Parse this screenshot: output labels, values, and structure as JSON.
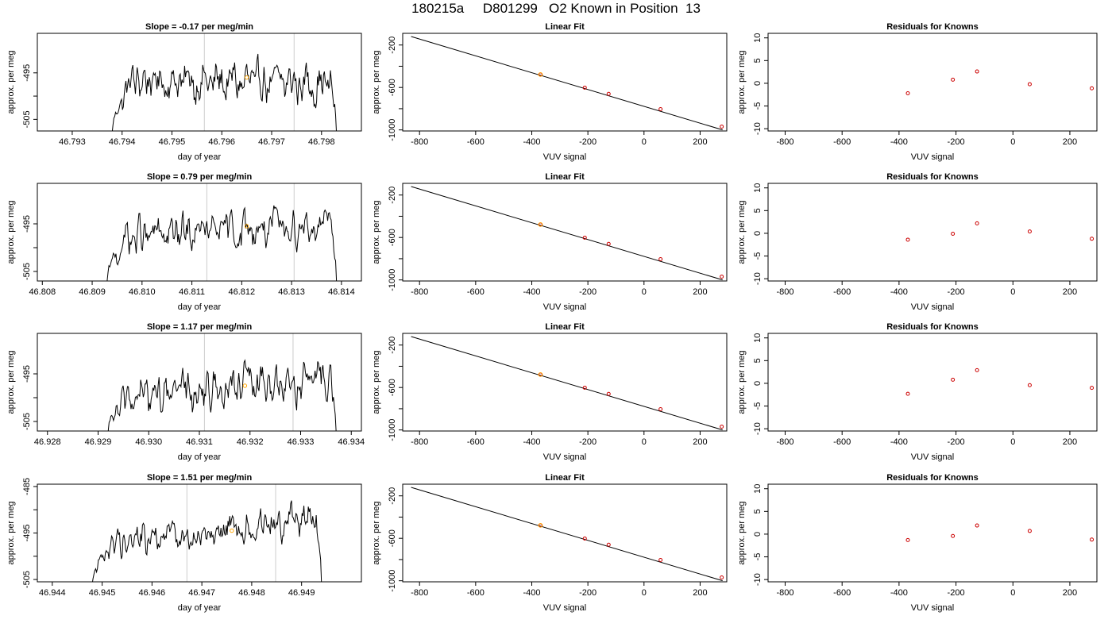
{
  "main_title": "180215a     D801299   O2 Known in Position  13",
  "colors": {
    "trace": "#000000",
    "vline": "#cccccc",
    "highlight": "#ffa500",
    "residual": "#cc0000",
    "fit": "#000000"
  },
  "chart_data": [
    {
      "type": "line",
      "title": "Slope =  -0.17  per meg/min",
      "xlabel": "day of year",
      "ylabel": "approx. per meg",
      "xlim": [
        46.7923,
        46.7988
      ],
      "ylim": [
        -507.5,
        -486.5
      ],
      "xticks": [
        "46.793",
        "46.794",
        "46.795",
        "46.796",
        "46.797",
        "46.798"
      ],
      "yticks": [
        "-495",
        "-505"
      ],
      "trace_start": 46.7938,
      "trace_end": 46.7983,
      "trace_min": -508,
      "trace_mid": -497,
      "trace_drift": -0.17,
      "noise": 2.4,
      "vlines": [
        46.79565,
        46.79745
      ],
      "highlight": {
        "x": 46.7965,
        "y": -496
      }
    },
    {
      "type": "scatter",
      "title": "Linear Fit",
      "xlabel": "VUV signal",
      "ylabel": "approx. per meg",
      "xlim": [
        -860,
        295
      ],
      "ylim": [
        -1010,
        -90
      ],
      "xticks": [
        "-800",
        "-600",
        "-400",
        "-200",
        "0",
        "200"
      ],
      "yticks": [
        "-200",
        "-600",
        "-1000"
      ],
      "fit_line": {
        "x": [
          -830,
          280
        ],
        "y": [
          -120,
          -1000
        ]
      },
      "points": {
        "x": [
          -369,
          -211,
          -126,
          59,
          277
        ],
        "y": [
          -478,
          -602,
          -660,
          -804,
          -969
        ]
      },
      "highlight": {
        "x": -369,
        "y": -478
      }
    },
    {
      "type": "scatter",
      "title": "Residuals for Knowns",
      "xlabel": "VUV signal",
      "ylabel": "approx. per meg",
      "xlim": [
        -860,
        295
      ],
      "ylim": [
        -10.5,
        11
      ],
      "xticks": [
        "-800",
        "-600",
        "-400",
        "-200",
        "0",
        "200"
      ],
      "yticks": [
        "-10",
        "-5",
        "0",
        "5",
        "10"
      ],
      "points": {
        "x": [
          -369,
          -211,
          -126,
          59,
          277
        ],
        "y": [
          -2.2,
          0.8,
          2.6,
          -0.2,
          -1.1
        ]
      }
    },
    {
      "type": "line",
      "title": "Slope =  0.79  per meg/min",
      "xlabel": "day of year",
      "ylabel": "approx. per meg",
      "xlim": [
        46.8079,
        46.8144
      ],
      "ylim": [
        -507,
        -486.5
      ],
      "xticks": [
        "46.808",
        "46.809",
        "46.810",
        "46.811",
        "46.812",
        "46.813",
        "46.814"
      ],
      "yticks": [
        "-495",
        "-505"
      ],
      "trace_start": 46.8093,
      "trace_end": 46.8139,
      "trace_min": -507,
      "trace_mid": -496.5,
      "trace_drift": 0.79,
      "noise": 2.2,
      "vlines": [
        46.8113,
        46.81305
      ],
      "highlight": {
        "x": 46.8121,
        "y": -495.5
      }
    },
    {
      "type": "scatter",
      "title": "Linear Fit",
      "xlabel": "VUV signal",
      "ylabel": "approx. per meg",
      "xlim": [
        -860,
        295
      ],
      "ylim": [
        -1010,
        -90
      ],
      "xticks": [
        "-800",
        "-600",
        "-400",
        "-200",
        "0",
        "200"
      ],
      "yticks": [
        "-200",
        "-600",
        "-1000"
      ],
      "fit_line": {
        "x": [
          -830,
          280
        ],
        "y": [
          -120,
          -1000
        ]
      },
      "points": {
        "x": [
          -369,
          -211,
          -126,
          59,
          277
        ],
        "y": [
          -478,
          -602,
          -660,
          -804,
          -969
        ]
      },
      "highlight": {
        "x": -369,
        "y": -478
      }
    },
    {
      "type": "scatter",
      "title": "Residuals for Knowns",
      "xlabel": "VUV signal",
      "ylabel": "approx. per meg",
      "xlim": [
        -860,
        295
      ],
      "ylim": [
        -10.5,
        11
      ],
      "xticks": [
        "-800",
        "-600",
        "-400",
        "-200",
        "0",
        "200"
      ],
      "yticks": [
        "-10",
        "-5",
        "0",
        "5",
        "10"
      ],
      "points": {
        "x": [
          -369,
          -211,
          -126,
          59,
          277
        ],
        "y": [
          -1.4,
          -0.1,
          2.2,
          0.4,
          -1.2
        ]
      }
    },
    {
      "type": "line",
      "title": "Slope =  1.17  per meg/min",
      "xlabel": "day of year",
      "ylabel": "approx. per meg",
      "xlim": [
        46.9278,
        46.9342
      ],
      "ylim": [
        -507,
        -486.5
      ],
      "xticks": [
        "46.928",
        "46.929",
        "46.930",
        "46.931",
        "46.932",
        "46.933",
        "46.934"
      ],
      "yticks": [
        "-495",
        "-505"
      ],
      "trace_start": 46.9292,
      "trace_end": 46.9337,
      "trace_min": -507,
      "trace_mid": -498,
      "trace_drift": 1.17,
      "noise": 2.4,
      "vlines": [
        46.9311,
        46.93285
      ],
      "highlight": {
        "x": 46.9319,
        "y": -497.5
      }
    },
    {
      "type": "scatter",
      "title": "Linear Fit",
      "xlabel": "VUV signal",
      "ylabel": "approx. per meg",
      "xlim": [
        -860,
        295
      ],
      "ylim": [
        -1010,
        -90
      ],
      "xticks": [
        "-800",
        "-600",
        "-400",
        "-200",
        "0",
        "200"
      ],
      "yticks": [
        "-200",
        "-600",
        "-1000"
      ],
      "fit_line": {
        "x": [
          -830,
          280
        ],
        "y": [
          -120,
          -1000
        ]
      },
      "points": {
        "x": [
          -369,
          -211,
          -126,
          59,
          277
        ],
        "y": [
          -478,
          -602,
          -660,
          -804,
          -969
        ]
      },
      "highlight": {
        "x": -369,
        "y": -478
      }
    },
    {
      "type": "scatter",
      "title": "Residuals for Knowns",
      "xlabel": "VUV signal",
      "ylabel": "approx. per meg",
      "xlim": [
        -860,
        295
      ],
      "ylim": [
        -10.5,
        11
      ],
      "xticks": [
        "-800",
        "-600",
        "-400",
        "-200",
        "0",
        "200"
      ],
      "yticks": [
        "-10",
        "-5",
        "0",
        "5",
        "10"
      ],
      "points": {
        "x": [
          -369,
          -211,
          -126,
          59,
          277
        ],
        "y": [
          -2.3,
          0.8,
          2.9,
          -0.4,
          -1.0
        ]
      }
    },
    {
      "type": "line",
      "title": "Slope =  1.51  per meg/min",
      "xlabel": "day of year",
      "ylabel": "approx. per meg",
      "xlim": [
        46.9437,
        46.9502
      ],
      "ylim": [
        -505.5,
        -484.5
      ],
      "xticks": [
        "46.944",
        "46.945",
        "46.946",
        "46.947",
        "46.948",
        "46.949"
      ],
      "yticks": [
        "-485",
        "-495",
        "-505"
      ],
      "trace_start": 46.9448,
      "trace_end": 46.9494,
      "trace_min": -506,
      "trace_mid": -494.5,
      "trace_drift": 1.51,
      "noise": 2.0,
      "vlines": [
        46.9467,
        46.94848
      ],
      "highlight": {
        "x": 46.9476,
        "y": -494.5
      }
    },
    {
      "type": "scatter",
      "title": "Linear Fit",
      "xlabel": "VUV signal",
      "ylabel": "approx. per meg",
      "xlim": [
        -860,
        295
      ],
      "ylim": [
        -1010,
        -90
      ],
      "xticks": [
        "-800",
        "-600",
        "-400",
        "-200",
        "0",
        "200"
      ],
      "yticks": [
        "-200",
        "-600",
        "-1000"
      ],
      "fit_line": {
        "x": [
          -830,
          280
        ],
        "y": [
          -120,
          -1000
        ]
      },
      "points": {
        "x": [
          -369,
          -211,
          -126,
          59,
          277
        ],
        "y": [
          -478,
          -602,
          -660,
          -804,
          -969
        ]
      },
      "highlight": {
        "x": -369,
        "y": -478
      }
    },
    {
      "type": "scatter",
      "title": "Residuals for Knowns",
      "xlabel": "VUV signal",
      "ylabel": "approx. per meg",
      "xlim": [
        -860,
        295
      ],
      "ylim": [
        -10.5,
        11
      ],
      "xticks": [
        "-800",
        "-600",
        "-400",
        "-200",
        "0",
        "200"
      ],
      "yticks": [
        "-10",
        "-5",
        "0",
        "5",
        "10"
      ],
      "points": {
        "x": [
          -369,
          -211,
          -126,
          59,
          277
        ],
        "y": [
          -1.3,
          -0.4,
          1.9,
          0.7,
          -1.2
        ]
      }
    }
  ]
}
